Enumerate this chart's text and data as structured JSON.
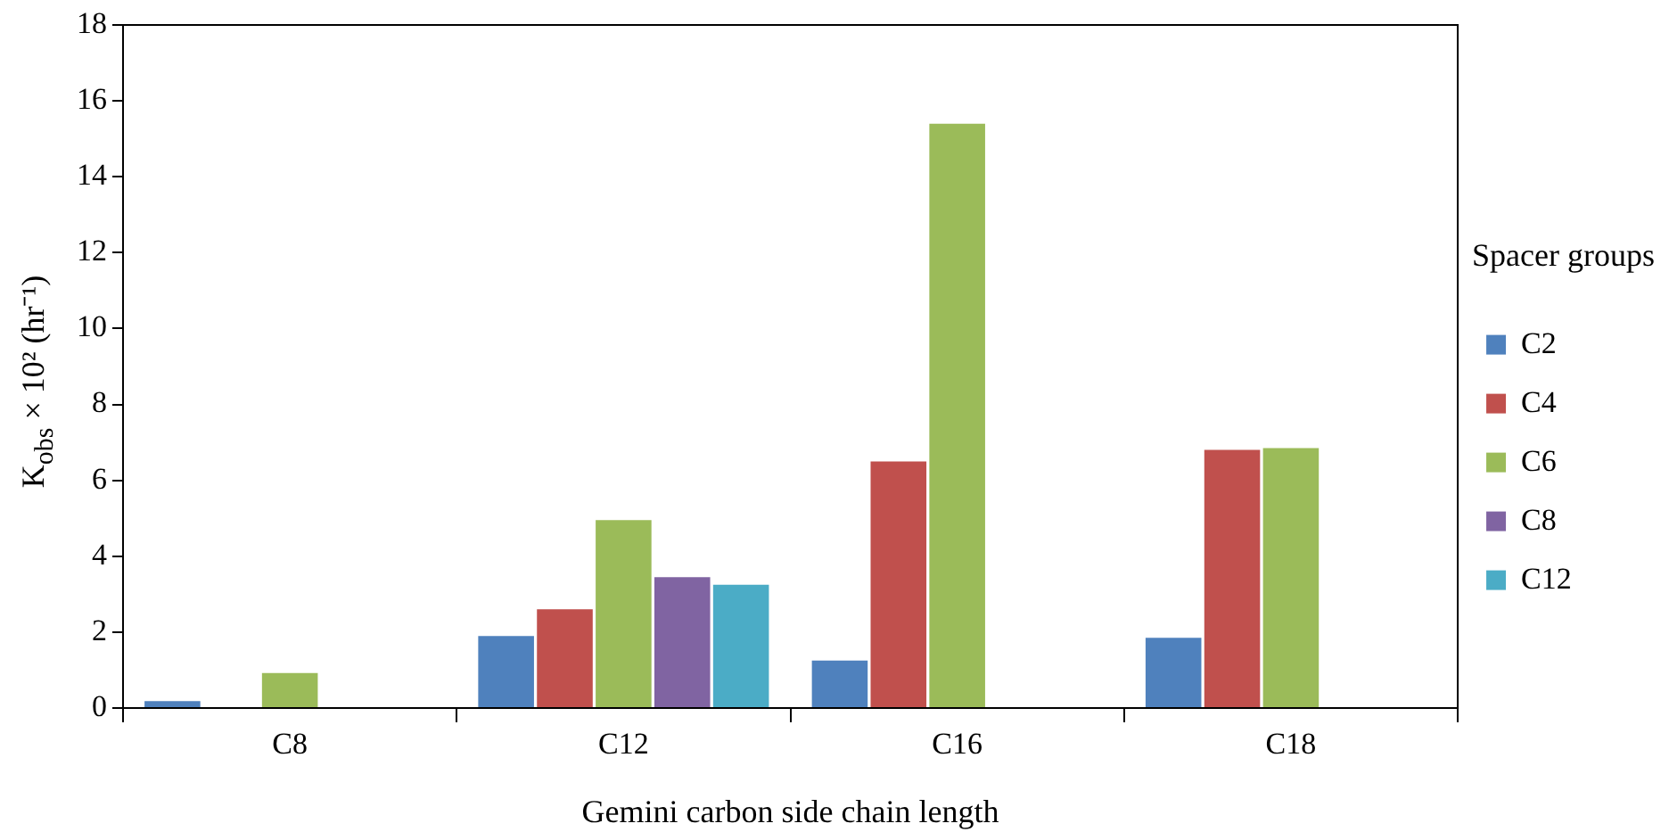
{
  "chart_data": {
    "type": "bar",
    "xlabel": "Gemini carbon side chain length",
    "ylabel": "K$_{obs}$ × 10² (hr⁻¹)",
    "legend_title": "Spacer groups",
    "legend": "right",
    "grid": false,
    "categories": [
      "C8",
      "C12",
      "C16",
      "C18"
    ],
    "ylim": [
      0,
      18
    ],
    "yticks": [
      0,
      2,
      4,
      6,
      8,
      10,
      12,
      14,
      16,
      18
    ],
    "series": [
      {
        "name": "C2",
        "color": "#4f81bd",
        "values": [
          0.18,
          1.9,
          1.25,
          1.85
        ]
      },
      {
        "name": "C4",
        "color": "#c0504d",
        "values": [
          null,
          2.6,
          6.5,
          6.8
        ]
      },
      {
        "name": "C6",
        "color": "#9bbb59",
        "values": [
          0.92,
          4.95,
          15.4,
          6.85
        ]
      },
      {
        "name": "C8",
        "color": "#8064a2",
        "values": [
          null,
          3.45,
          null,
          null
        ]
      },
      {
        "name": "C12",
        "color": "#4bacc6",
        "values": [
          null,
          3.25,
          null,
          null
        ]
      }
    ]
  }
}
